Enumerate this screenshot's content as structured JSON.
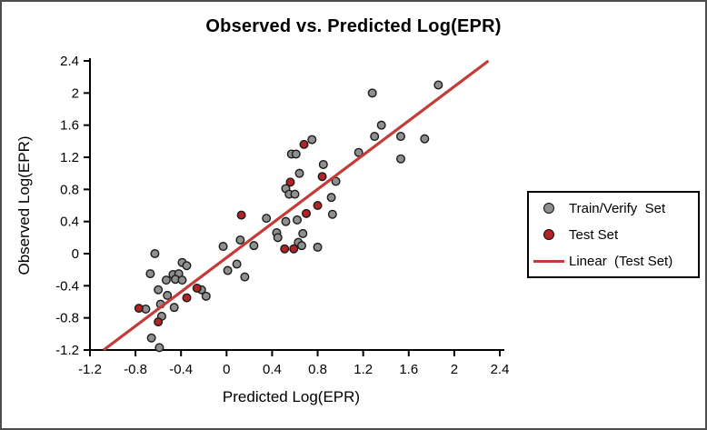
{
  "chart_data": {
    "type": "scatter",
    "title": "Observed vs. Predicted Log(EPR)",
    "xlabel": "Predicted Log(EPR)",
    "ylabel": "Observed Log(EPR)",
    "xlim": [
      -1.2,
      2.4
    ],
    "ylim": [
      -1.2,
      2.4
    ],
    "x_tick_values": [
      -1.2,
      -0.8,
      -0.4,
      0,
      0.4,
      0.8,
      1.2,
      1.6,
      2,
      2.4
    ],
    "x_tick_labels": [
      "-1.2",
      "-0.8",
      "-0.4",
      "0",
      "0.4",
      "0.8",
      "1.2",
      "1.6",
      "2",
      "2.4"
    ],
    "y_tick_values": [
      -1.2,
      -0.8,
      -0.4,
      0,
      0.4,
      0.8,
      1.2,
      1.6,
      2,
      2.4
    ],
    "y_tick_labels": [
      "-1.2",
      "-0.8",
      "-0.4",
      "0",
      "0.4",
      "0.8",
      "1.2",
      "1.6",
      "2",
      "2.4"
    ],
    "grid": false,
    "legend_position": "right-outside-middle",
    "axis_color": "#000000",
    "series": [
      {
        "name": "Train/Verify  Set",
        "kind": "scatter",
        "color": "#8F8F8F",
        "edge_color": "#1a1a1a",
        "points": [
          [
            -0.63,
            0.0
          ],
          [
            -0.67,
            -0.25
          ],
          [
            -0.39,
            -0.11
          ],
          [
            -0.35,
            -0.15
          ],
          [
            -0.47,
            -0.26
          ],
          [
            -0.42,
            -0.25
          ],
          [
            -0.45,
            -0.32
          ],
          [
            -0.39,
            -0.33
          ],
          [
            -0.53,
            -0.33
          ],
          [
            -0.6,
            -0.45
          ],
          [
            -0.52,
            -0.52
          ],
          [
            -0.58,
            -0.63
          ],
          [
            -0.22,
            -0.45
          ],
          [
            -0.18,
            -0.53
          ],
          [
            -0.46,
            -0.67
          ],
          [
            -0.71,
            -0.69
          ],
          [
            -0.57,
            -0.78
          ],
          [
            -0.66,
            -1.05
          ],
          [
            -0.59,
            -1.17
          ],
          [
            -0.03,
            0.09
          ],
          [
            0.12,
            0.17
          ],
          [
            0.24,
            0.1
          ],
          [
            0.09,
            -0.13
          ],
          [
            0.01,
            -0.21
          ],
          [
            0.16,
            -0.29
          ],
          [
            0.35,
            0.44
          ],
          [
            0.52,
            0.4
          ],
          [
            0.44,
            0.26
          ],
          [
            0.45,
            0.2
          ],
          [
            0.62,
            0.42
          ],
          [
            0.67,
            0.25
          ],
          [
            0.63,
            0.14
          ],
          [
            0.66,
            0.1
          ],
          [
            0.8,
            0.08
          ],
          [
            0.93,
            0.49
          ],
          [
            0.92,
            0.7
          ],
          [
            0.96,
            0.9
          ],
          [
            0.52,
            0.81
          ],
          [
            0.55,
            0.74
          ],
          [
            0.6,
            0.74
          ],
          [
            0.64,
            1.0
          ],
          [
            0.85,
            1.11
          ],
          [
            0.75,
            1.42
          ],
          [
            0.57,
            1.24
          ],
          [
            0.61,
            1.24
          ],
          [
            1.16,
            1.26
          ],
          [
            1.3,
            1.46
          ],
          [
            1.36,
            1.6
          ],
          [
            1.53,
            1.46
          ],
          [
            1.53,
            1.18
          ],
          [
            1.74,
            1.43
          ],
          [
            1.28,
            2.0
          ],
          [
            1.86,
            2.1
          ]
        ]
      },
      {
        "name": "Test Set",
        "kind": "scatter",
        "color": "#B22324",
        "edge_color": "#1a1a1a",
        "points": [
          [
            -0.77,
            -0.68
          ],
          [
            -0.6,
            -0.85
          ],
          [
            -0.35,
            -0.55
          ],
          [
            -0.26,
            -0.43
          ],
          [
            0.13,
            0.48
          ],
          [
            0.51,
            0.06
          ],
          [
            0.59,
            0.06
          ],
          [
            0.7,
            0.5
          ],
          [
            0.8,
            0.6
          ],
          [
            0.56,
            0.89
          ],
          [
            0.84,
            0.96
          ],
          [
            0.68,
            1.36
          ]
        ]
      },
      {
        "name": "Linear  (Test Set)",
        "kind": "line",
        "color": "#C13C3A",
        "points": [
          [
            -1.08,
            -1.2
          ],
          [
            2.3,
            2.4
          ]
        ]
      }
    ]
  }
}
